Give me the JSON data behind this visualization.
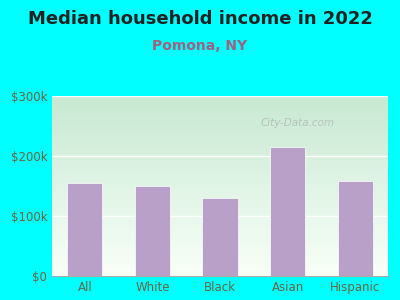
{
  "title": "Median household income in 2022",
  "subtitle": "Pomona, NY",
  "categories": [
    "All",
    "White",
    "Black",
    "Asian",
    "Hispanic"
  ],
  "values": [
    155000,
    150000,
    130000,
    215000,
    158000
  ],
  "bar_color": "#b8a0c8",
  "ylim": [
    0,
    300000
  ],
  "ytick_vals": [
    0,
    100000,
    200000,
    300000
  ],
  "ytick_labels": [
    "$0",
    "$100k",
    "$200k",
    "$300k"
  ],
  "title_fontsize": 13,
  "subtitle_fontsize": 10,
  "tick_fontsize": 8.5,
  "background_outer": "#00FFFF",
  "bg_top_color": "#c8e8d0",
  "bg_bottom_color": "#f8fff8",
  "watermark": "City-Data.com",
  "title_color": "#222222",
  "subtitle_color": "#a06080",
  "tick_color": "#666644",
  "grid_color": "#e0e8e0"
}
